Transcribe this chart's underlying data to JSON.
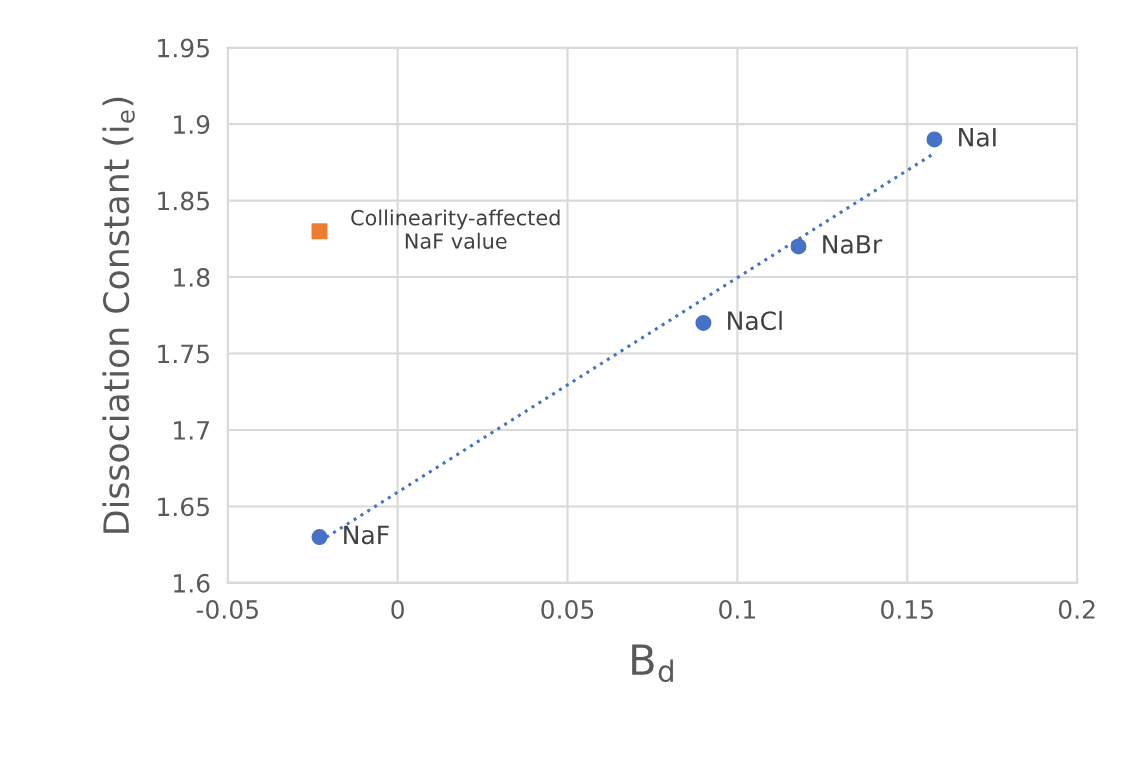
{
  "chart_data": {
    "type": "scatter",
    "xlabel": "B$_{d}$",
    "ylabel": "Dissociation Constant (i$_{e}$)",
    "series": [
      {
        "color": "#4472c4",
        "marker": "circle",
        "x": [
          -0.023,
          0.09,
          0.118,
          0.158
        ],
        "values": [
          1.63,
          1.77,
          1.82,
          1.89
        ]
      },
      {
        "type": "scatter",
        "color": "#ed7d31",
        "marker": "square",
        "x": [
          -0.023
        ],
        "values": [
          1.83
        ]
      },
      {
        "type": "line",
        "color": "#4472c4",
        "line_style": "dotted",
        "marker": "none",
        "x": [
          -0.023,
          0.158
        ],
        "values": [
          1.627,
          1.881
        ]
      }
    ],
    "annotations": [
      {
        "text": "NaF",
        "x": -0.023,
        "y": 1.63
      },
      {
        "text": "NaCl",
        "x": 0.09,
        "y": 1.77
      },
      {
        "text": "NaBr",
        "x": 0.118,
        "y": 1.82
      },
      {
        "text": "NaI",
        "x": 0.158,
        "y": 1.89
      },
      {
        "text": "Collinearity-affected\nNaF value",
        "x": -0.023,
        "y": 1.83
      }
    ],
    "xlim": [
      -0.05,
      0.2
    ],
    "xticks": [
      -0.05,
      0,
      0.05,
      0.1,
      0.15,
      0.2
    ],
    "ylim": [
      1.6,
      1.95
    ],
    "yticks": [
      1.6,
      1.65,
      1.7,
      1.75,
      1.8,
      1.85,
      1.9,
      1.95
    ],
    "grid": true,
    "legend": false
  }
}
